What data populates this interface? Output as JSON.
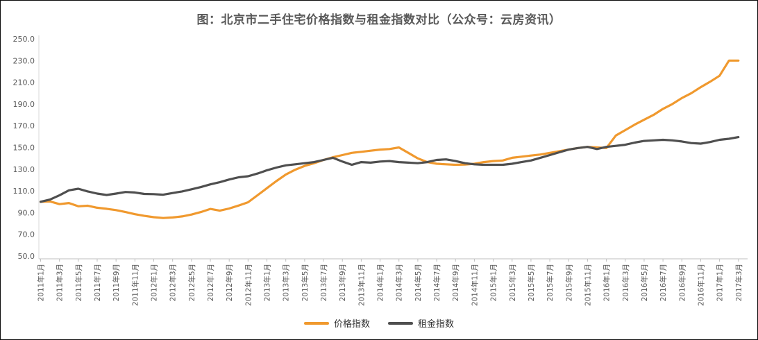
{
  "title": "图：北京市二手住宅价格指数与租金指数对比（公众号：云房资讯）",
  "chart_data": {
    "type": "line",
    "x": [
      "2011年1月",
      "2011年2月",
      "2011年3月",
      "2011年4月",
      "2011年5月",
      "2011年6月",
      "2011年7月",
      "2011年8月",
      "2011年9月",
      "2011年10月",
      "2011年11月",
      "2011年12月",
      "2012年1月",
      "2012年2月",
      "2012年3月",
      "2012年4月",
      "2012年5月",
      "2012年6月",
      "2012年7月",
      "2012年8月",
      "2012年9月",
      "2012年10月",
      "2012年11月",
      "2012年12月",
      "2013年1月",
      "2013年2月",
      "2013年3月",
      "2013年4月",
      "2013年5月",
      "2013年6月",
      "2013年7月",
      "2013年8月",
      "2013年9月",
      "2013年10月",
      "2013年11月",
      "2013年12月",
      "2014年1月",
      "2014年2月",
      "2014年3月",
      "2014年4月",
      "2014年5月",
      "2014年6月",
      "2014年7月",
      "2014年8月",
      "2014年9月",
      "2014年10月",
      "2014年11月",
      "2014年12月",
      "2015年1月",
      "2015年2月",
      "2015年3月",
      "2015年4月",
      "2015年5月",
      "2015年6月",
      "2015年7月",
      "2015年8月",
      "2015年9月",
      "2015年10月",
      "2015年11月",
      "2015年12月",
      "2016年1月",
      "2016年2月",
      "2016年3月",
      "2016年4月",
      "2016年5月",
      "2016年6月",
      "2016年7月",
      "2016年8月",
      "2016年9月",
      "2016年10月",
      "2016年11月",
      "2016年12月",
      "2017年1月",
      "2017年2月",
      "2017年3月"
    ],
    "x_label_every": 2,
    "y_ticks": [
      "250.0",
      "230.0",
      "210.0",
      "190.0",
      "170.0",
      "150.0",
      "130.0",
      "110.0",
      "90.0",
      "70.0",
      "50.0"
    ],
    "ylim": [
      50,
      250
    ],
    "grid": false,
    "legend_position": "bottom",
    "series": [
      {
        "name": "价格指数",
        "color": "#F0992E",
        "values": [
          100.0,
          100.3,
          97.8,
          98.8,
          95.8,
          96.3,
          94.5,
          93.5,
          92.3,
          90.5,
          88.5,
          87.0,
          85.8,
          85.0,
          85.5,
          86.5,
          88.2,
          90.5,
          93.4,
          91.8,
          93.8,
          96.5,
          99.5,
          106.0,
          112.5,
          119.0,
          125.0,
          129.5,
          133.0,
          135.5,
          138.5,
          141.0,
          143.0,
          145.0,
          146.0,
          147.0,
          148.0,
          148.5,
          150.0,
          145.0,
          140.0,
          136.5,
          135.0,
          134.5,
          134.0,
          134.3,
          135.0,
          136.5,
          137.5,
          138.0,
          140.5,
          141.5,
          142.5,
          143.5,
          145.0,
          146.5,
          148.0,
          149.5,
          150.5,
          150.0,
          149.5,
          161.0,
          166.0,
          171.0,
          175.5,
          180.0,
          185.5,
          190.0,
          195.5,
          200.0,
          205.5,
          210.5,
          216.0,
          230.0,
          230.0
        ]
      },
      {
        "name": "租金指数",
        "color": "#4F4F4F",
        "values": [
          100.0,
          102.0,
          106.0,
          110.5,
          112.0,
          109.5,
          107.5,
          106.2,
          107.5,
          109.0,
          108.5,
          107.2,
          107.0,
          106.5,
          108.0,
          109.5,
          111.5,
          113.5,
          116.0,
          118.0,
          120.5,
          122.5,
          123.5,
          126.0,
          129.0,
          131.5,
          133.5,
          134.5,
          135.5,
          136.5,
          138.5,
          140.5,
          137.0,
          134.0,
          136.5,
          136.0,
          137.0,
          137.5,
          136.5,
          136.0,
          135.5,
          136.5,
          138.5,
          139.0,
          137.5,
          135.5,
          134.5,
          134.0,
          134.0,
          134.0,
          135.0,
          136.5,
          138.0,
          140.5,
          143.0,
          145.5,
          148.0,
          149.5,
          150.5,
          148.5,
          150.5,
          151.5,
          152.5,
          154.5,
          156.0,
          156.5,
          157.0,
          156.5,
          155.5,
          154.0,
          153.5,
          155.0,
          157.0,
          158.0,
          159.5
        ]
      }
    ]
  },
  "colors": {
    "title_text": "#595959",
    "axis_text": "#595959",
    "axis_line": "#BFBFBF"
  }
}
